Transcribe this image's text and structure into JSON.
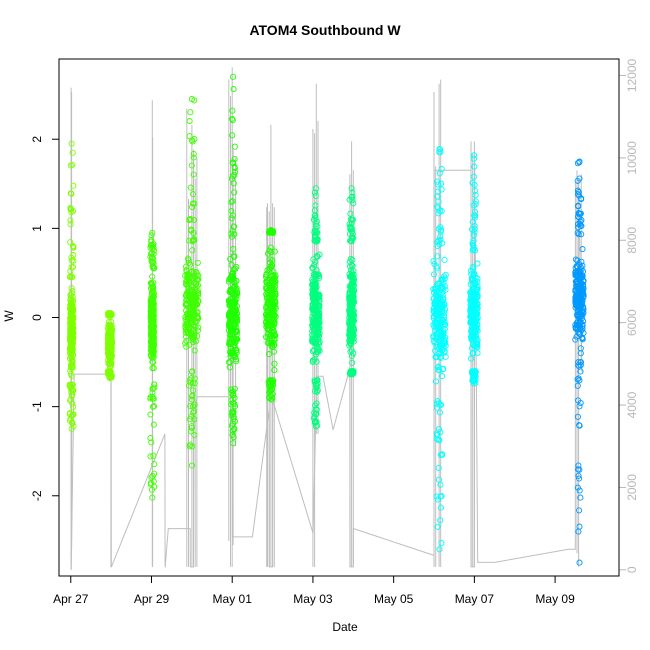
{
  "chart_data": {
    "type": "scatter",
    "title": "ATOM4 Southbound W",
    "xlabel": "Date",
    "ylabel": "W",
    "x_ticks": [
      "Apr 27",
      "Apr 29",
      "May 01",
      "May 03",
      "May 05",
      "May 07",
      "May 09"
    ],
    "y_ticks": [
      "-2",
      "-1",
      "0",
      "1",
      "2"
    ],
    "y2_ticks": [
      "0",
      "2000",
      "4000",
      "6000",
      "8000",
      "10000",
      "12000"
    ],
    "xlim": [
      "2024-04-26T17:00",
      "2024-05-10T14:00"
    ],
    "ylim": [
      -2.9,
      2.9
    ],
    "y2lim": [
      -150,
      12400
    ],
    "grid": false,
    "legend": "none",
    "secondary_series": {
      "axis": "right",
      "color": "#bebebe",
      "style": "line",
      "path": [
        [
          "2024-04-27T00:00",
          4750
        ],
        [
          "2024-04-27T00:10",
          4750
        ],
        [
          "2024-04-27T00:15",
          0
        ],
        [
          "2024-04-27T02:00",
          4750
        ],
        [
          "2024-04-27T22:00",
          4750
        ],
        [
          "2024-04-27T22:06",
          5000
        ],
        [
          "2024-04-28T00:00",
          5000
        ],
        [
          "2024-04-28T00:05",
          70
        ],
        [
          "2024-04-28T00:10",
          70
        ],
        [
          "2024-04-29T08:00",
          3300
        ],
        [
          "2024-04-29T08:05",
          70
        ],
        [
          "2024-04-29T08:10",
          70
        ],
        [
          "2024-04-29T10:00",
          1000
        ],
        [
          "2024-04-29T23:00",
          1000
        ],
        [
          "2024-04-29T23:05",
          70
        ],
        [
          "2024-04-30T01:00",
          70
        ],
        [
          "2024-04-30T01:05",
          3500
        ],
        [
          "2024-04-30T01:10",
          3500
        ],
        [
          "2024-04-30T03:00",
          4200
        ],
        [
          "2024-05-01T00:00",
          4200
        ],
        [
          "2024-05-01T00:05",
          800
        ],
        [
          "2024-05-01T00:10",
          800
        ],
        [
          "2024-05-01T12:00",
          800
        ],
        [
          "2024-05-01T22:00",
          3900
        ],
        [
          "2024-05-01T22:05",
          70
        ],
        [
          "2024-05-02T00:00",
          70
        ],
        [
          "2024-05-02T00:05",
          4100
        ],
        [
          "2024-05-02T00:10",
          4100
        ],
        [
          "2024-05-03T00:00",
          900
        ],
        [
          "2024-05-03T00:05",
          900
        ],
        [
          "2024-05-03T02:00",
          4200
        ],
        [
          "2024-05-03T02:05",
          4700
        ],
        [
          "2024-05-03T06:00",
          4700
        ],
        [
          "2024-05-03T12:00",
          3400
        ],
        [
          "2024-05-03T22:00",
          4900
        ],
        [
          "2024-05-03T22:05",
          70
        ],
        [
          "2024-05-04T00:00",
          70
        ],
        [
          "2024-05-04T00:05",
          1000
        ],
        [
          "2024-05-04T00:10",
          1000
        ],
        [
          "2024-05-06T00:00",
          350
        ],
        [
          "2024-05-06T00:05",
          9700
        ],
        [
          "2024-05-06T02:00",
          9700
        ],
        [
          "2024-05-06T12:00",
          9700
        ],
        [
          "2024-05-06T22:00",
          9700
        ],
        [
          "2024-05-06T22:05",
          70
        ],
        [
          "2024-05-07T00:00",
          70
        ],
        [
          "2024-05-07T00:05",
          9700
        ],
        [
          "2024-05-07T00:10",
          9700
        ],
        [
          "2024-05-07T02:00",
          180
        ],
        [
          "2024-05-07T12:00",
          180
        ],
        [
          "2024-05-09T08:00",
          500
        ],
        [
          "2024-05-09T12:00",
          500
        ],
        [
          "2024-05-09T12:05",
          9400
        ],
        [
          "2024-05-09T14:00",
          9400
        ],
        [
          "2024-05-09T16:00",
          4800
        ]
      ],
      "spikes": [
        [
          "2024-04-27T00:10",
          0,
          11700
        ],
        [
          "2024-04-27T00:30",
          500,
          11600
        ],
        [
          "2024-04-27T23:50",
          70,
          6100
        ],
        [
          "2024-04-29T00:30",
          70,
          11400
        ],
        [
          "2024-04-29T00:40",
          70,
          10500
        ],
        [
          "2024-04-29T21:00",
          70,
          11200
        ],
        [
          "2024-04-29T22:00",
          70,
          9000
        ],
        [
          "2024-04-30T00:00",
          70,
          10800
        ],
        [
          "2024-04-30T01:00",
          70,
          10200
        ],
        [
          "2024-04-30T02:00",
          70,
          9500
        ],
        [
          "2024-04-30T03:00",
          70,
          10000
        ],
        [
          "2024-04-30T22:00",
          700,
          11900
        ],
        [
          "2024-04-30T23:00",
          70,
          11500
        ],
        [
          "2024-05-01T00:00",
          70,
          12200
        ],
        [
          "2024-05-01T00:30",
          600,
          10200
        ],
        [
          "2024-05-01T02:00",
          3000,
          10000
        ],
        [
          "2024-05-01T20:30",
          70,
          8800
        ],
        [
          "2024-05-01T21:00",
          70,
          8900
        ],
        [
          "2024-05-01T22:00",
          70,
          8700
        ],
        [
          "2024-05-01T23:00",
          70,
          10800
        ],
        [
          "2024-05-02T00:00",
          70,
          8900
        ],
        [
          "2024-05-02T01:00",
          70,
          8800
        ],
        [
          "2024-05-03T00:00",
          70,
          10700
        ],
        [
          "2024-05-03T01:00",
          70,
          10600
        ],
        [
          "2024-05-03T02:00",
          3300,
          11800
        ],
        [
          "2024-05-03T03:00",
          3300,
          10900
        ],
        [
          "2024-05-03T22:00",
          70,
          9600
        ],
        [
          "2024-05-03T23:00",
          70,
          10400
        ],
        [
          "2024-05-04T00:00",
          70,
          9700
        ],
        [
          "2024-05-06T00:00",
          70,
          11600
        ],
        [
          "2024-05-06T01:00",
          70,
          9800
        ],
        [
          "2024-05-06T03:00",
          70,
          11800
        ],
        [
          "2024-05-06T04:00",
          70,
          11900
        ],
        [
          "2024-05-06T22:00",
          70,
          10400
        ],
        [
          "2024-05-06T23:00",
          70,
          10100
        ],
        [
          "2024-05-07T00:00",
          70,
          10400
        ],
        [
          "2024-05-09T13:00",
          400,
          9700
        ],
        [
          "2024-05-09T14:00",
          70,
          9500
        ],
        [
          "2024-05-09T15:30",
          4900,
          9600
        ]
      ]
    },
    "series": [
      {
        "color": "#7fff00",
        "segments": [
          {
            "x_start": "2024-04-26T23:30",
            "x_end": "2024-04-27T01:30",
            "core": [
              -0.75,
              0.45
            ],
            "min": -1.25,
            "max": 1.95
          },
          {
            "x_start": "2024-04-27T22:00",
            "x_end": "2024-04-28T00:30",
            "core": [
              -0.6,
              0.02
            ],
            "min": -0.68,
            "max": 0.05
          }
        ]
      },
      {
        "color": "#3fff00",
        "segments": [
          {
            "x_start": "2024-04-28T23:30",
            "x_end": "2024-04-29T01:30",
            "core": [
              -0.75,
              0.55
            ],
            "min": -2.02,
            "max": 0.95
          },
          {
            "x_start": "2024-04-29T20:00",
            "x_end": "2024-04-30T04:00",
            "core": [
              -0.6,
              0.85
            ],
            "min": -1.66,
            "max": 2.45
          }
        ]
      },
      {
        "color": "#1fff00",
        "segments": [
          {
            "x_start": "2024-04-30T22:00",
            "x_end": "2024-05-01T03:00",
            "core": [
              -0.8,
              0.9
            ],
            "min": -1.41,
            "max": 2.7
          },
          {
            "x_start": "2024-05-01T20:00",
            "x_end": "2024-05-02T02:00",
            "core": [
              -0.7,
              0.95
            ],
            "min": -0.92,
            "max": 0.98
          }
        ]
      },
      {
        "color": "#00ff7f",
        "segments": [
          {
            "x_start": "2024-05-02T23:30",
            "x_end": "2024-05-03T04:00",
            "core": [
              -0.7,
              0.85
            ],
            "min": -1.22,
            "max": 1.45
          },
          {
            "x_start": "2024-05-03T21:30",
            "x_end": "2024-05-04T00:30",
            "core": [
              -0.6,
              0.85
            ],
            "min": -0.64,
            "max": 1.45
          }
        ]
      },
      {
        "color": "#00ffff",
        "segments": [
          {
            "x_start": "2024-05-05T23:30",
            "x_end": "2024-05-06T07:00",
            "core": [
              -0.9,
              0.8
            ],
            "min": -2.6,
            "max": 1.89
          },
          {
            "x_start": "2024-05-06T21:30",
            "x_end": "2024-05-07T02:00",
            "core": [
              -0.6,
              0.75
            ],
            "min": -0.74,
            "max": 1.82
          }
        ]
      },
      {
        "color": "#0099ff",
        "segments": [
          {
            "x_start": "2024-05-09T12:00",
            "x_end": "2024-05-09T17:00",
            "core": [
              -0.5,
              0.9
            ],
            "min": -2.75,
            "max": 1.75
          }
        ]
      }
    ]
  }
}
